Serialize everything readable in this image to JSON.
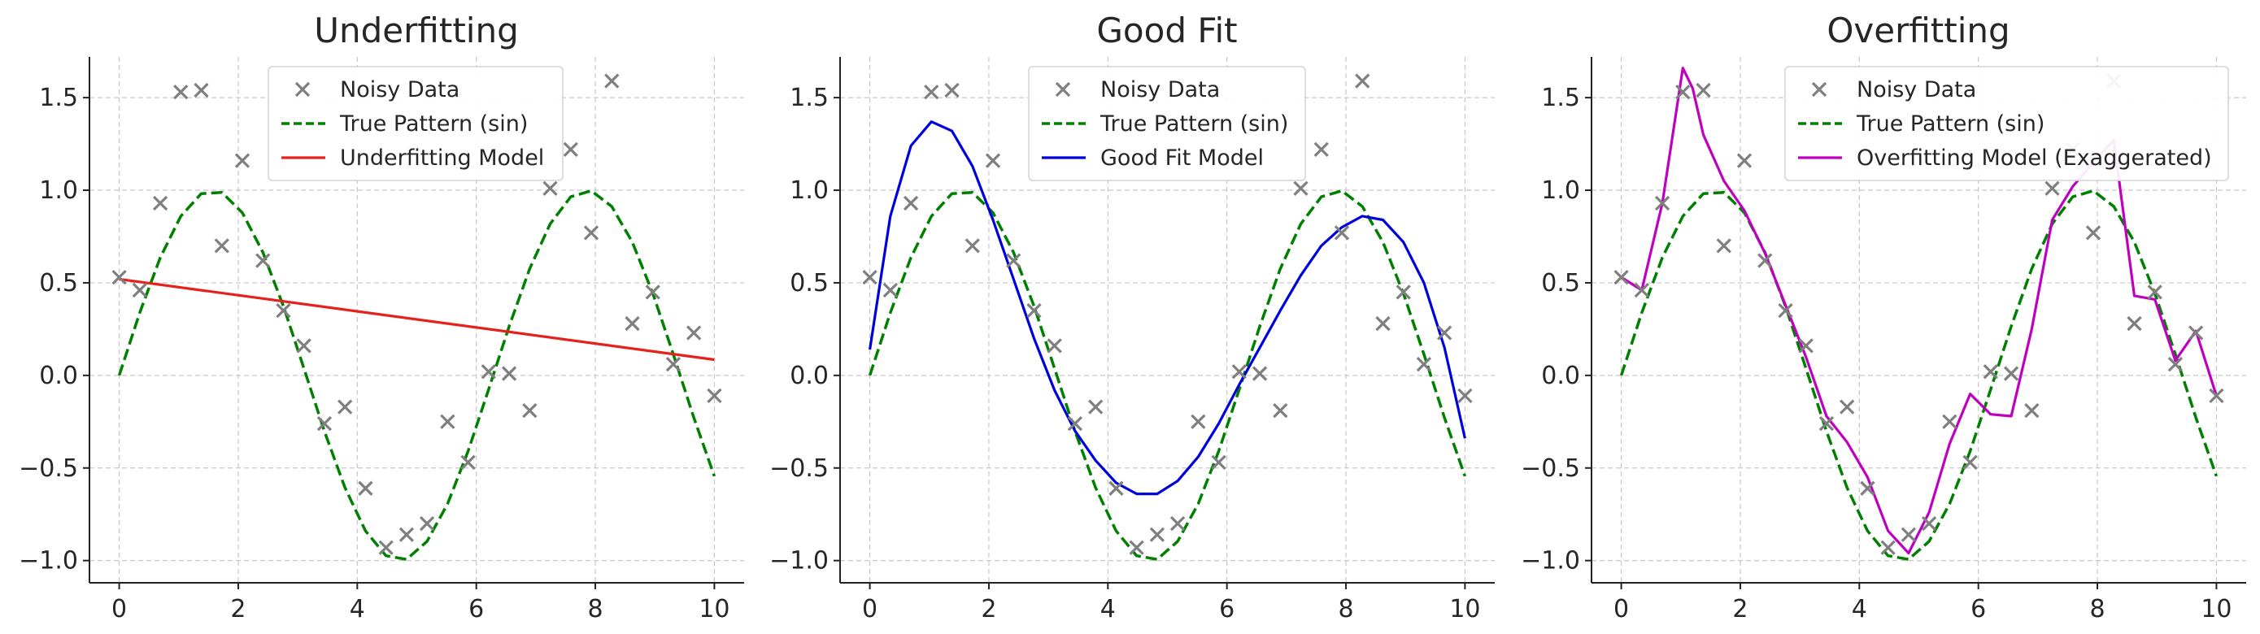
{
  "chart_data": [
    {
      "type": "line",
      "title": "Underfitting",
      "xlabel": "",
      "ylabel": "",
      "xlim": [
        -0.5,
        10.5
      ],
      "ylim": [
        -1.12,
        1.72
      ],
      "xticks": [
        0,
        2,
        4,
        6,
        8,
        10
      ],
      "yticks": [
        -1.0,
        -0.5,
        0.0,
        0.5,
        1.0,
        1.5
      ],
      "ytick_labels": [
        "−1.0",
        "−0.5",
        "0.0",
        "0.5",
        "1.0",
        "1.5"
      ],
      "grid": true,
      "legend_position": "top-center",
      "series": [
        {
          "name": "Noisy Data",
          "kind": "scatter",
          "marker": "x",
          "color": "#7f7f7f",
          "x": [
            0,
            0.345,
            0.69,
            1.034,
            1.379,
            1.724,
            2.069,
            2.414,
            2.759,
            3.103,
            3.448,
            3.793,
            4.138,
            4.483,
            4.828,
            5.172,
            5.517,
            5.862,
            6.207,
            6.552,
            6.897,
            7.241,
            7.586,
            7.931,
            8.276,
            8.621,
            8.966,
            9.31,
            9.655,
            10
          ],
          "y": [
            0.53,
            0.46,
            0.93,
            1.53,
            1.54,
            0.7,
            1.16,
            0.62,
            0.35,
            0.16,
            -0.26,
            -0.17,
            -0.61,
            -0.93,
            -0.86,
            -0.8,
            -0.25,
            -0.47,
            0.02,
            0.01,
            -0.19,
            1.01,
            1.22,
            0.77,
            1.59,
            0.28,
            0.45,
            0.06,
            0.23,
            -0.11
          ]
        },
        {
          "name": "True Pattern (sin)",
          "kind": "line",
          "style": "dashed",
          "color": "#008000",
          "function": "sin",
          "x_range": [
            0,
            10
          ],
          "samples": 30
        },
        {
          "name": "Underfitting Model",
          "kind": "line",
          "style": "solid",
          "color": "#e8201c",
          "x": [
            0,
            10
          ],
          "y": [
            0.52,
            0.085
          ]
        }
      ]
    },
    {
      "type": "line",
      "title": "Good Fit",
      "xlabel": "",
      "ylabel": "",
      "xlim": [
        -0.5,
        10.5
      ],
      "ylim": [
        -1.12,
        1.72
      ],
      "xticks": [
        0,
        2,
        4,
        6,
        8,
        10
      ],
      "yticks": [
        -1.0,
        -0.5,
        0.0,
        0.5,
        1.0,
        1.5
      ],
      "ytick_labels": [
        "−1.0",
        "−0.5",
        "0.0",
        "0.5",
        "1.0",
        "1.5"
      ],
      "grid": true,
      "legend_position": "top-center",
      "series": [
        {
          "name": "Noisy Data",
          "kind": "scatter",
          "marker": "x",
          "color": "#7f7f7f",
          "x": [
            0,
            0.345,
            0.69,
            1.034,
            1.379,
            1.724,
            2.069,
            2.414,
            2.759,
            3.103,
            3.448,
            3.793,
            4.138,
            4.483,
            4.828,
            5.172,
            5.517,
            5.862,
            6.207,
            6.552,
            6.897,
            7.241,
            7.586,
            7.931,
            8.276,
            8.621,
            8.966,
            9.31,
            9.655,
            10
          ],
          "y": [
            0.53,
            0.46,
            0.93,
            1.53,
            1.54,
            0.7,
            1.16,
            0.62,
            0.35,
            0.16,
            -0.26,
            -0.17,
            -0.61,
            -0.93,
            -0.86,
            -0.8,
            -0.25,
            -0.47,
            0.02,
            0.01,
            -0.19,
            1.01,
            1.22,
            0.77,
            1.59,
            0.28,
            0.45,
            0.06,
            0.23,
            -0.11
          ]
        },
        {
          "name": "True Pattern (sin)",
          "kind": "line",
          "style": "dashed",
          "color": "#008000",
          "function": "sin",
          "x_range": [
            0,
            10
          ],
          "samples": 30
        },
        {
          "name": "Good Fit Model",
          "kind": "line",
          "style": "solid",
          "color": "#0000dd",
          "x": [
            0,
            0.345,
            0.69,
            1.034,
            1.379,
            1.724,
            2.069,
            2.414,
            2.759,
            3.103,
            3.448,
            3.793,
            4.138,
            4.483,
            4.828,
            5.172,
            5.517,
            5.862,
            6.207,
            6.552,
            6.897,
            7.241,
            7.586,
            7.931,
            8.276,
            8.621,
            8.966,
            9.31,
            9.655,
            10
          ],
          "y": [
            0.14,
            0.86,
            1.24,
            1.37,
            1.32,
            1.13,
            0.84,
            0.52,
            0.2,
            -0.08,
            -0.3,
            -0.46,
            -0.58,
            -0.64,
            -0.64,
            -0.57,
            -0.44,
            -0.26,
            -0.05,
            0.15,
            0.35,
            0.54,
            0.7,
            0.8,
            0.86,
            0.84,
            0.72,
            0.5,
            0.15,
            -0.34
          ]
        }
      ]
    },
    {
      "type": "line",
      "title": "Overfitting",
      "xlabel": "",
      "ylabel": "",
      "xlim": [
        -0.5,
        10.5
      ],
      "ylim": [
        -1.12,
        1.72
      ],
      "xticks": [
        0,
        2,
        4,
        6,
        8,
        10
      ],
      "yticks": [
        -1.0,
        -0.5,
        0.0,
        0.5,
        1.0,
        1.5
      ],
      "ytick_labels": [
        "−1.0",
        "−0.5",
        "0.0",
        "0.5",
        "1.0",
        "1.5"
      ],
      "grid": true,
      "legend_position": "top-right",
      "series": [
        {
          "name": "Noisy Data",
          "kind": "scatter",
          "marker": "x",
          "color": "#7f7f7f",
          "x": [
            0,
            0.345,
            0.69,
            1.034,
            1.379,
            1.724,
            2.069,
            2.414,
            2.759,
            3.103,
            3.448,
            3.793,
            4.138,
            4.483,
            4.828,
            5.172,
            5.517,
            5.862,
            6.207,
            6.552,
            6.897,
            7.241,
            7.586,
            7.931,
            8.276,
            8.621,
            8.966,
            9.31,
            9.655,
            10
          ],
          "y": [
            0.53,
            0.46,
            0.93,
            1.53,
            1.54,
            0.7,
            1.16,
            0.62,
            0.35,
            0.16,
            -0.26,
            -0.17,
            -0.61,
            -0.93,
            -0.86,
            -0.8,
            -0.25,
            -0.47,
            0.02,
            0.01,
            -0.19,
            1.01,
            1.22,
            0.77,
            1.59,
            0.28,
            0.45,
            0.06,
            0.23,
            -0.11
          ]
        },
        {
          "name": "True Pattern (sin)",
          "kind": "line",
          "style": "dashed",
          "color": "#008000",
          "function": "sin",
          "x_range": [
            0,
            10
          ],
          "samples": 30
        },
        {
          "name": "Overfitting Model (Exaggerated)",
          "kind": "line",
          "style": "solid",
          "color": "#c000c0",
          "x": [
            0,
            0.345,
            0.69,
            1.034,
            1.2,
            1.379,
            1.724,
            2.069,
            2.414,
            2.759,
            3.103,
            3.448,
            3.793,
            4.138,
            4.483,
            4.828,
            5.172,
            5.517,
            5.862,
            6.207,
            6.552,
            6.897,
            7.241,
            7.586,
            7.931,
            8.276,
            8.621,
            8.966,
            9.31,
            9.655,
            10
          ],
          "y": [
            0.53,
            0.46,
            0.93,
            1.66,
            1.55,
            1.3,
            1.05,
            0.89,
            0.66,
            0.38,
            0.1,
            -0.22,
            -0.36,
            -0.55,
            -0.84,
            -0.96,
            -0.74,
            -0.37,
            -0.1,
            -0.21,
            -0.22,
            0.25,
            0.84,
            1.02,
            1.15,
            1.27,
            0.43,
            0.41,
            0.08,
            0.24,
            -0.11
          ]
        }
      ]
    }
  ]
}
